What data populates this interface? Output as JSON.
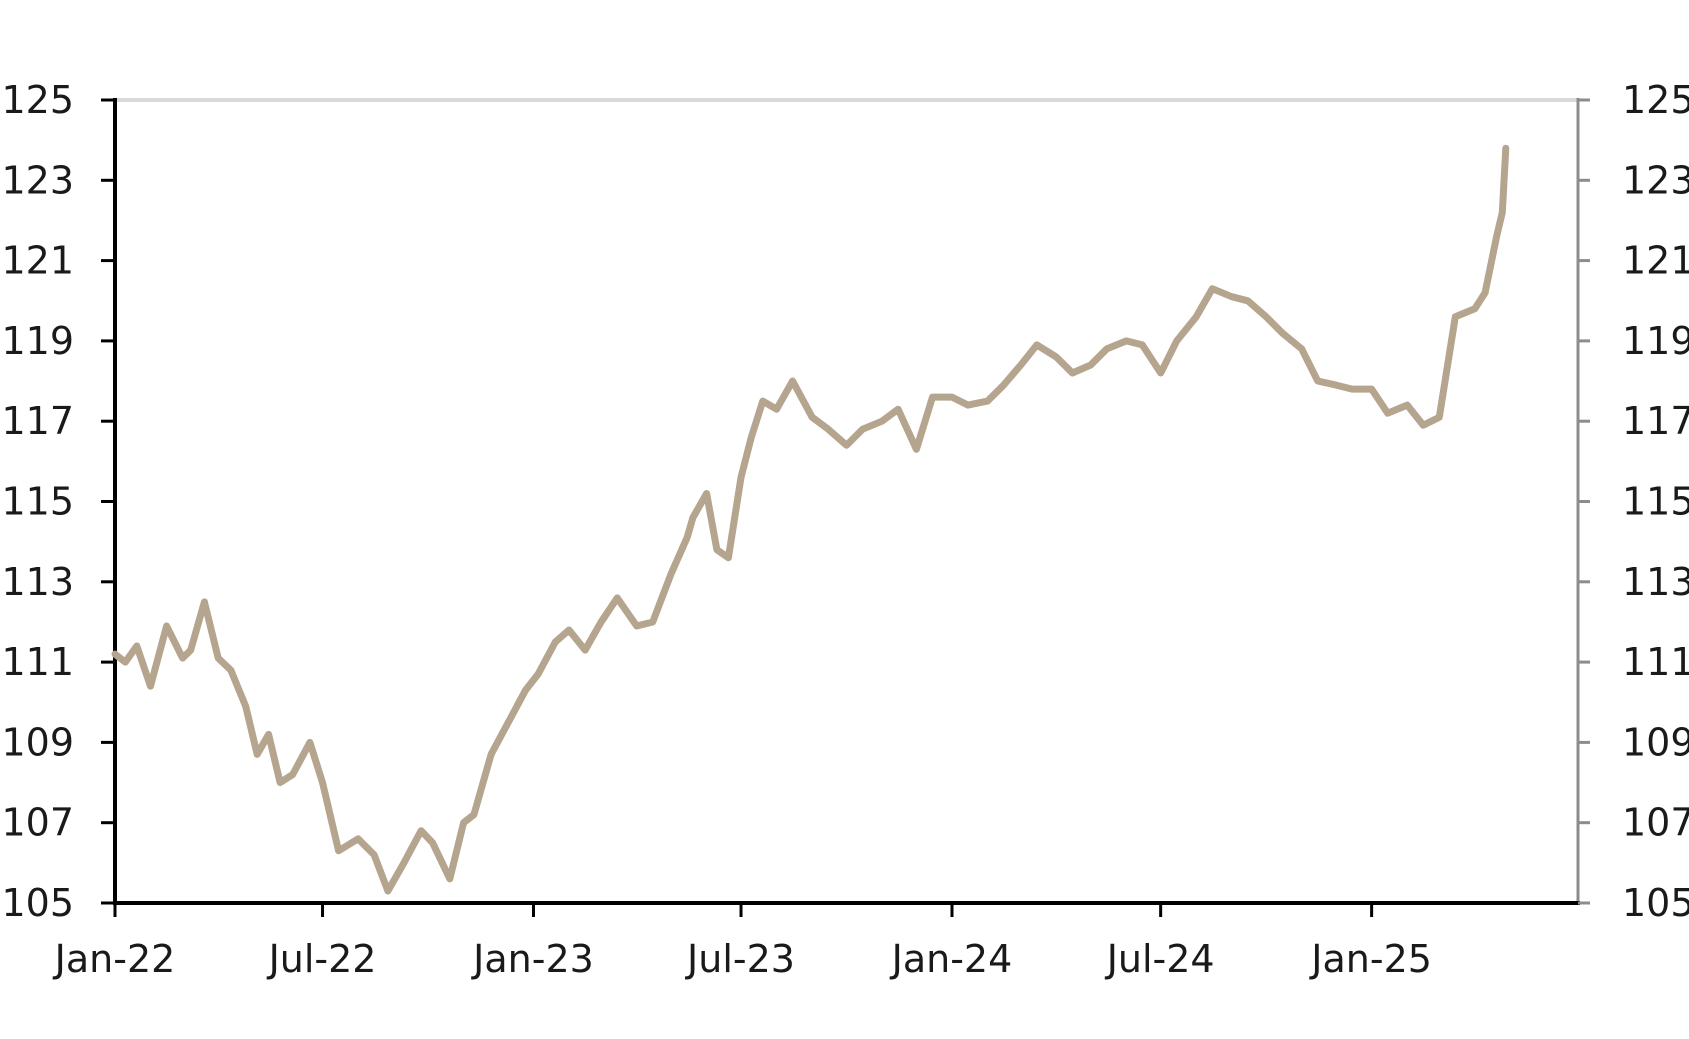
{
  "chart_data": {
    "type": "line",
    "title": "",
    "xlabel": "",
    "ylabel": "",
    "ylim": [
      105,
      125
    ],
    "y_ticks": [
      105,
      107,
      109,
      111,
      113,
      115,
      117,
      119,
      121,
      123,
      125
    ],
    "y_tick_labels": [
      "105",
      "107",
      "109",
      "111",
      "113",
      "115",
      "117",
      "119",
      "121",
      "123",
      "125"
    ],
    "y_axes": [
      "left",
      "right"
    ],
    "x_ticks": [
      "2022-01-01",
      "2022-07-01",
      "2023-01-01",
      "2023-07-01",
      "2024-01-01",
      "2024-07-01",
      "2025-01-01"
    ],
    "x_tick_labels": [
      "Jan-22",
      "Jul-22",
      "Jan-23",
      "Jul-23",
      "Jan-24",
      "Jul-24",
      "Jan-25"
    ],
    "xlim": [
      "2022-01-01",
      "2025-06-30"
    ],
    "grid": false,
    "line_color": "#b5a48e",
    "series": [
      {
        "x": [
          "2022-01-01",
          "2022-01-10",
          "2022-01-20",
          "2022-02-01",
          "2022-02-15",
          "2022-03-01",
          "2022-03-08",
          "2022-03-20",
          "2022-04-01",
          "2022-04-12",
          "2022-04-25",
          "2022-05-05",
          "2022-05-15",
          "2022-05-25",
          "2022-06-05",
          "2022-06-20",
          "2022-07-01",
          "2022-07-15",
          "2022-08-01",
          "2022-08-15",
          "2022-08-27",
          "2022-09-10",
          "2022-09-25",
          "2022-10-05",
          "2022-10-20",
          "2022-11-01",
          "2022-11-10",
          "2022-11-25",
          "2022-12-10",
          "2022-12-25",
          "2023-01-05",
          "2023-01-20",
          "2023-02-01",
          "2023-02-15",
          "2023-03-01",
          "2023-03-15",
          "2023-04-01",
          "2023-04-15",
          "2023-05-01",
          "2023-05-15",
          "2023-05-20",
          "2023-06-01",
          "2023-06-10",
          "2023-06-20",
          "2023-07-01",
          "2023-07-10",
          "2023-07-20",
          "2023-08-01",
          "2023-08-15",
          "2023-09-01",
          "2023-09-15",
          "2023-10-01",
          "2023-10-15",
          "2023-11-01",
          "2023-11-15",
          "2023-12-01",
          "2023-12-15",
          "2024-01-01",
          "2024-01-15",
          "2024-02-01",
          "2024-02-15",
          "2024-03-01",
          "2024-03-15",
          "2024-04-01",
          "2024-04-15",
          "2024-05-01",
          "2024-05-15",
          "2024-06-01",
          "2024-06-15",
          "2024-07-01",
          "2024-07-15",
          "2024-08-01",
          "2024-08-15",
          "2024-09-01",
          "2024-09-15",
          "2024-10-01",
          "2024-10-15",
          "2024-11-01",
          "2024-11-15",
          "2024-12-01",
          "2024-12-15",
          "2025-01-01",
          "2025-01-15",
          "2025-02-01",
          "2025-02-15",
          "2025-03-01",
          "2025-03-15",
          "2025-04-01",
          "2025-04-10",
          "2025-04-20",
          "2025-04-25",
          "2025-04-28"
        ],
        "values": [
          111.2,
          111.0,
          111.4,
          110.4,
          111.9,
          111.1,
          111.3,
          112.5,
          111.1,
          110.8,
          109.9,
          108.7,
          109.2,
          108.0,
          108.2,
          109.0,
          108.0,
          106.3,
          106.6,
          106.2,
          105.3,
          106.0,
          106.8,
          106.5,
          105.6,
          107.0,
          107.2,
          108.7,
          109.5,
          110.3,
          110.7,
          111.5,
          111.8,
          111.3,
          112.0,
          112.6,
          111.9,
          112.0,
          113.2,
          114.1,
          114.6,
          115.2,
          113.8,
          113.6,
          115.6,
          116.6,
          117.5,
          117.3,
          118.0,
          117.1,
          116.8,
          116.4,
          116.8,
          117.0,
          117.3,
          116.3,
          117.6,
          117.6,
          117.4,
          117.5,
          117.9,
          118.4,
          118.9,
          118.6,
          118.2,
          118.4,
          118.8,
          119.0,
          118.9,
          118.2,
          119.0,
          119.6,
          120.3,
          120.1,
          120.0,
          119.6,
          119.2,
          118.8,
          118.0,
          117.9,
          117.8,
          117.8,
          117.2,
          117.4,
          116.9,
          117.1,
          119.6,
          119.8,
          120.2,
          121.6,
          122.2,
          123.8
        ]
      }
    ]
  }
}
